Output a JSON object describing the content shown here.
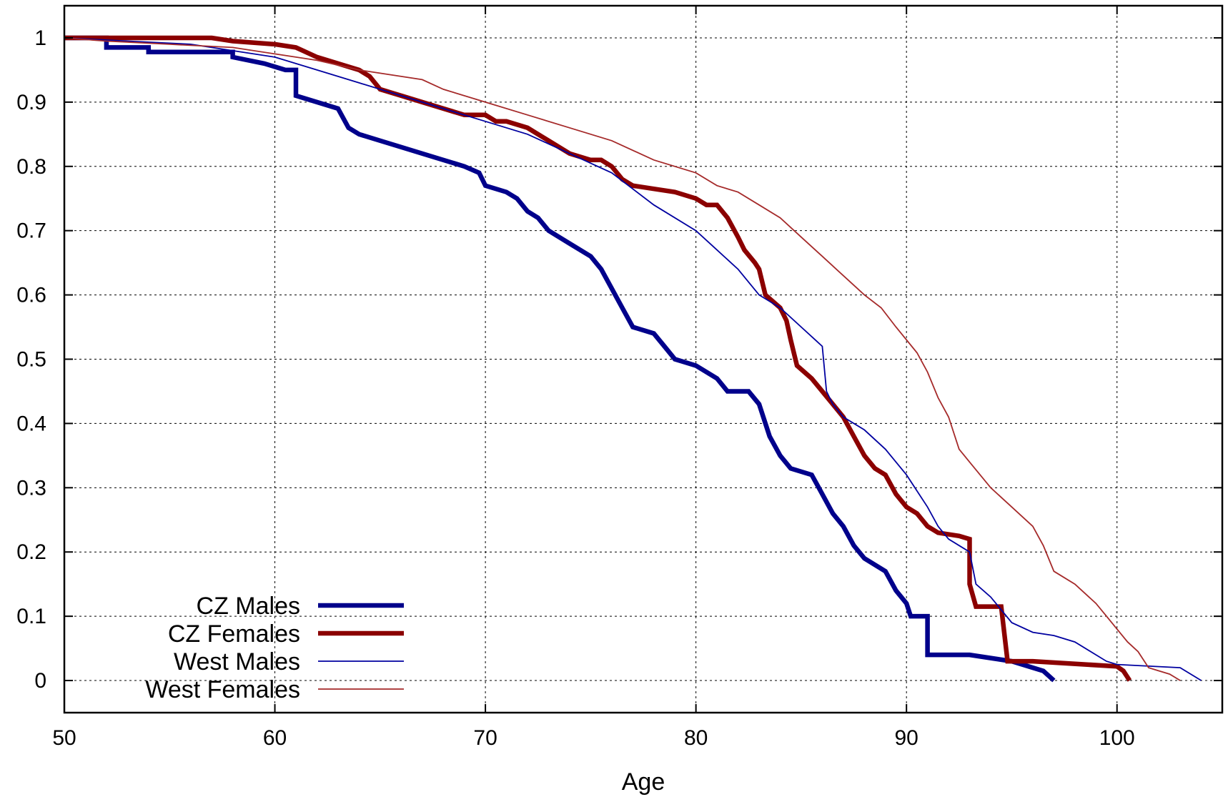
{
  "chart_data": {
    "type": "line",
    "xlabel": "Age",
    "ylabel": "",
    "xlim": [
      50,
      105
    ],
    "ylim": [
      -0.05,
      1.05
    ],
    "xticks": [
      50,
      60,
      70,
      80,
      90,
      100
    ],
    "yticks": [
      0,
      0.1,
      0.2,
      0.3,
      0.4,
      0.5,
      0.6,
      0.7,
      0.8,
      0.9,
      1
    ],
    "grid": true,
    "legend_position": "bottom-left",
    "series": [
      {
        "name": "CZ Males",
        "color": "#00008B",
        "weight": "thick",
        "points": [
          [
            50,
            1.0
          ],
          [
            52,
            1.0
          ],
          [
            52,
            0.985
          ],
          [
            54,
            0.985
          ],
          [
            54,
            0.978
          ],
          [
            58,
            0.978
          ],
          [
            58,
            0.97
          ],
          [
            59.5,
            0.96
          ],
          [
            60.5,
            0.95
          ],
          [
            61,
            0.95
          ],
          [
            61,
            0.91
          ],
          [
            62,
            0.9
          ],
          [
            63,
            0.89
          ],
          [
            63.5,
            0.86
          ],
          [
            64,
            0.85
          ],
          [
            65,
            0.84
          ],
          [
            66,
            0.83
          ],
          [
            67,
            0.82
          ],
          [
            68,
            0.81
          ],
          [
            69,
            0.8
          ],
          [
            69.7,
            0.79
          ],
          [
            70,
            0.77
          ],
          [
            71,
            0.76
          ],
          [
            71.5,
            0.75
          ],
          [
            72,
            0.73
          ],
          [
            72.5,
            0.72
          ],
          [
            73,
            0.7
          ],
          [
            74,
            0.68
          ],
          [
            75,
            0.66
          ],
          [
            75.5,
            0.64
          ],
          [
            76,
            0.61
          ],
          [
            76.5,
            0.58
          ],
          [
            77,
            0.55
          ],
          [
            78,
            0.54
          ],
          [
            78.5,
            0.52
          ],
          [
            79,
            0.5
          ],
          [
            80,
            0.49
          ],
          [
            81,
            0.47
          ],
          [
            81.5,
            0.45
          ],
          [
            82.5,
            0.45
          ],
          [
            83,
            0.43
          ],
          [
            83.5,
            0.38
          ],
          [
            84,
            0.35
          ],
          [
            84.5,
            0.33
          ],
          [
            85.5,
            0.32
          ],
          [
            86,
            0.29
          ],
          [
            86.5,
            0.26
          ],
          [
            87,
            0.24
          ],
          [
            87.5,
            0.21
          ],
          [
            88,
            0.19
          ],
          [
            89,
            0.17
          ],
          [
            89.5,
            0.14
          ],
          [
            90,
            0.12
          ],
          [
            90.2,
            0.1
          ],
          [
            91,
            0.1
          ],
          [
            91,
            0.04
          ],
          [
            93,
            0.04
          ],
          [
            94,
            0.035
          ],
          [
            95,
            0.03
          ],
          [
            96,
            0.02
          ],
          [
            96.5,
            0.015
          ],
          [
            97,
            0.0
          ]
        ]
      },
      {
        "name": "CZ Females",
        "color": "#8B0000",
        "weight": "thick",
        "points": [
          [
            50,
            1.0
          ],
          [
            57,
            1.0
          ],
          [
            58,
            0.995
          ],
          [
            60,
            0.99
          ],
          [
            61,
            0.985
          ],
          [
            62,
            0.97
          ],
          [
            63,
            0.96
          ],
          [
            64,
            0.95
          ],
          [
            64.5,
            0.94
          ],
          [
            65,
            0.92
          ],
          [
            66,
            0.91
          ],
          [
            67,
            0.9
          ],
          [
            68,
            0.89
          ],
          [
            69,
            0.88
          ],
          [
            70,
            0.88
          ],
          [
            70.5,
            0.87
          ],
          [
            71,
            0.87
          ],
          [
            72,
            0.86
          ],
          [
            72.5,
            0.85
          ],
          [
            73,
            0.84
          ],
          [
            74,
            0.82
          ],
          [
            75,
            0.81
          ],
          [
            75.5,
            0.81
          ],
          [
            76,
            0.8
          ],
          [
            76.5,
            0.78
          ],
          [
            77,
            0.77
          ],
          [
            78,
            0.765
          ],
          [
            79,
            0.76
          ],
          [
            80,
            0.75
          ],
          [
            80.5,
            0.74
          ],
          [
            81,
            0.74
          ],
          [
            81.5,
            0.72
          ],
          [
            82,
            0.69
          ],
          [
            82.3,
            0.67
          ],
          [
            82.8,
            0.65
          ],
          [
            83,
            0.64
          ],
          [
            83.3,
            0.6
          ],
          [
            84,
            0.58
          ],
          [
            84.3,
            0.56
          ],
          [
            84.5,
            0.53
          ],
          [
            84.8,
            0.49
          ],
          [
            85.5,
            0.47
          ],
          [
            86,
            0.45
          ],
          [
            86.5,
            0.43
          ],
          [
            87,
            0.41
          ],
          [
            87.5,
            0.38
          ],
          [
            88,
            0.35
          ],
          [
            88.5,
            0.33
          ],
          [
            89,
            0.32
          ],
          [
            89.5,
            0.29
          ],
          [
            90,
            0.27
          ],
          [
            90.5,
            0.26
          ],
          [
            91,
            0.24
          ],
          [
            91.5,
            0.23
          ],
          [
            92.5,
            0.225
          ],
          [
            93,
            0.22
          ],
          [
            93,
            0.15
          ],
          [
            93.3,
            0.115
          ],
          [
            94.5,
            0.115
          ],
          [
            94.8,
            0.03
          ],
          [
            96,
            0.03
          ],
          [
            100,
            0.022
          ],
          [
            100.3,
            0.015
          ],
          [
            100.6,
            0.0
          ]
        ]
      },
      {
        "name": "West Males",
        "color": "#0000A0",
        "weight": "thin",
        "points": [
          [
            50,
            1.0
          ],
          [
            53,
            0.995
          ],
          [
            56,
            0.99
          ],
          [
            58,
            0.98
          ],
          [
            60,
            0.97
          ],
          [
            62,
            0.95
          ],
          [
            64,
            0.93
          ],
          [
            66,
            0.91
          ],
          [
            68,
            0.89
          ],
          [
            70,
            0.87
          ],
          [
            72,
            0.85
          ],
          [
            74,
            0.82
          ],
          [
            76,
            0.79
          ],
          [
            78,
            0.74
          ],
          [
            80,
            0.7
          ],
          [
            81,
            0.67
          ],
          [
            82,
            0.64
          ],
          [
            83,
            0.6
          ],
          [
            84,
            0.58
          ],
          [
            85,
            0.55
          ],
          [
            86,
            0.52
          ],
          [
            86.2,
            0.45
          ],
          [
            86.5,
            0.43
          ],
          [
            87,
            0.41
          ],
          [
            88,
            0.39
          ],
          [
            89,
            0.36
          ],
          [
            90,
            0.32
          ],
          [
            91,
            0.27
          ],
          [
            91.5,
            0.24
          ],
          [
            92,
            0.22
          ],
          [
            92.5,
            0.21
          ],
          [
            93,
            0.2
          ],
          [
            93.3,
            0.15
          ],
          [
            94,
            0.13
          ],
          [
            94.5,
            0.11
          ],
          [
            95,
            0.09
          ],
          [
            96,
            0.075
          ],
          [
            97,
            0.07
          ],
          [
            98,
            0.06
          ],
          [
            99,
            0.04
          ],
          [
            99.5,
            0.03
          ],
          [
            100,
            0.025
          ],
          [
            103,
            0.02
          ],
          [
            104,
            0.0
          ]
        ]
      },
      {
        "name": "West Females",
        "color": "#A52A2A",
        "weight": "thin",
        "points": [
          [
            50,
            1.0
          ],
          [
            52,
            0.995
          ],
          [
            55,
            0.99
          ],
          [
            58,
            0.985
          ],
          [
            60,
            0.975
          ],
          [
            62,
            0.965
          ],
          [
            64,
            0.95
          ],
          [
            65,
            0.945
          ],
          [
            66,
            0.94
          ],
          [
            67,
            0.935
          ],
          [
            68,
            0.92
          ],
          [
            70,
            0.9
          ],
          [
            72,
            0.88
          ],
          [
            74,
            0.86
          ],
          [
            76,
            0.84
          ],
          [
            78,
            0.81
          ],
          [
            80,
            0.79
          ],
          [
            81,
            0.77
          ],
          [
            82,
            0.76
          ],
          [
            83,
            0.74
          ],
          [
            84,
            0.72
          ],
          [
            85,
            0.69
          ],
          [
            86,
            0.66
          ],
          [
            87,
            0.63
          ],
          [
            88,
            0.6
          ],
          [
            88.8,
            0.58
          ],
          [
            89.5,
            0.55
          ],
          [
            90.5,
            0.51
          ],
          [
            91,
            0.48
          ],
          [
            91.5,
            0.44
          ],
          [
            92,
            0.41
          ],
          [
            92.5,
            0.36
          ],
          [
            93,
            0.34
          ],
          [
            94,
            0.3
          ],
          [
            95,
            0.27
          ],
          [
            96,
            0.24
          ],
          [
            96.5,
            0.21
          ],
          [
            97,
            0.17
          ],
          [
            98,
            0.15
          ],
          [
            99,
            0.12
          ],
          [
            99.5,
            0.1
          ],
          [
            100,
            0.08
          ],
          [
            100.5,
            0.06
          ],
          [
            101,
            0.045
          ],
          [
            101.5,
            0.02
          ],
          [
            102,
            0.015
          ],
          [
            102.5,
            0.01
          ],
          [
            103,
            0.0
          ]
        ]
      }
    ]
  }
}
